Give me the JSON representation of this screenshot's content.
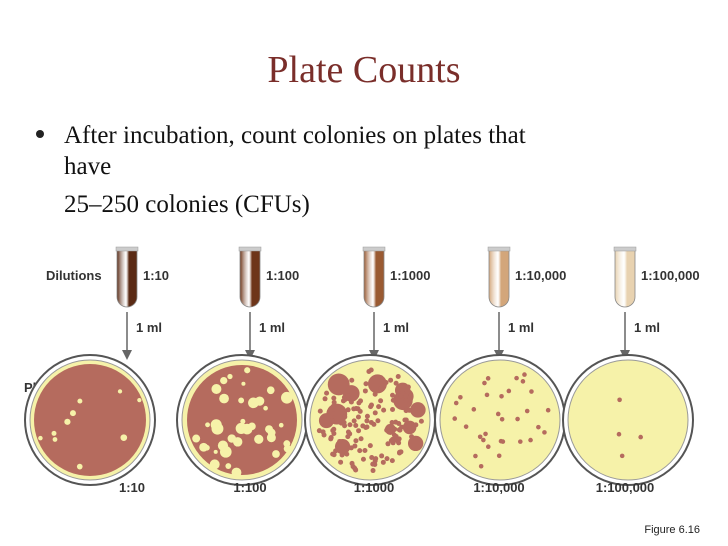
{
  "title": "Plate Counts",
  "bullet": {
    "lines": [
      "After incubation, count colonies on plates that",
      "have",
      "25–250 colonies (CFUs)"
    ]
  },
  "diagram": {
    "dilutions_label": "Dilutions",
    "plating_label": "Plating",
    "steps": [
      {
        "tube": "1:10",
        "transfer": "1 ml",
        "plate": "1:10"
      },
      {
        "tube": "1:100",
        "transfer": "1 ml",
        "plate": "1:100"
      },
      {
        "tube": "1:1000",
        "transfer": "1 ml",
        "plate": "1:1000"
      },
      {
        "tube": "1:10,000",
        "transfer": "1 ml",
        "plate": "1:10,000"
      },
      {
        "tube": "1:100,000",
        "transfer": "1 ml",
        "plate": "1:100,000"
      }
    ]
  },
  "caption": "Figure 6.16"
}
